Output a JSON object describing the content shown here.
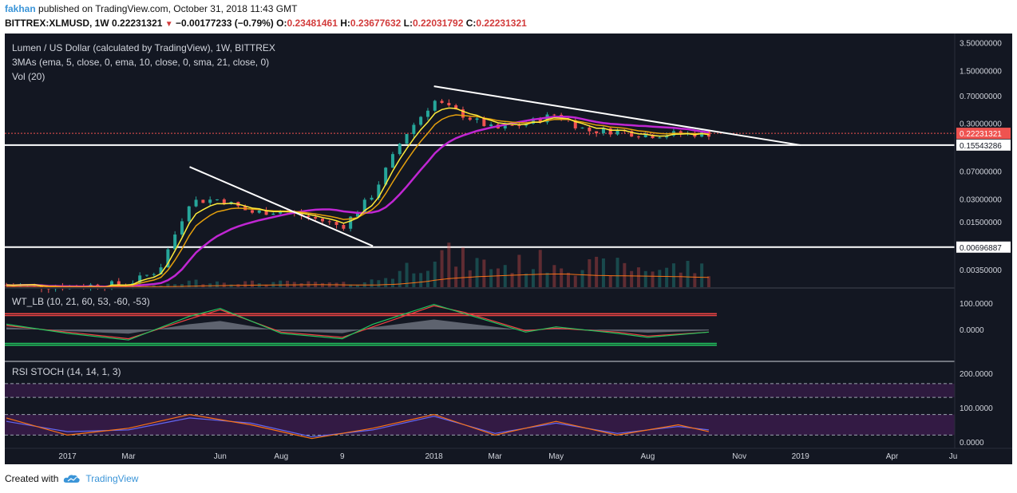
{
  "header": {
    "author": "fakhan",
    "published": "published on TradingView.com, October 31, 2018 11:43 GMT",
    "symbol": "BITTREX:XLMUSD, 1W",
    "last": "0.22231321",
    "change": "−0.00177233 (−0.79%)",
    "o_label": "O:",
    "o_value": "0.23481461",
    "h_label": "H:",
    "h_value": "0.23677632",
    "l_label": "L:",
    "l_value": "0.22031792",
    "c_label": "C:",
    "c_value": "0.22231321"
  },
  "legend": {
    "title": "Lumen / US Dollar (calculated by TradingView), 1W, BITTREX",
    "mas": "3MAs (ema, 5, close, 0, ema, 10, close, 0, sma, 21, close, 0)",
    "vol": "Vol (20)",
    "wt": "WT_LB (10, 21, 60, 53, -60, -53)",
    "rsi": "RSI STOCH (14, 14, 1, 3)"
  },
  "footer": {
    "created": "Created with",
    "brand": "TradingView"
  },
  "colors": {
    "background": "#131722",
    "up": "#26a69a",
    "down": "#ef5350",
    "ema5": "#ffeb3b",
    "sma21": "#c026d3",
    "wt1": "#22c55e",
    "wt2": "#ef4444",
    "stoch_k": "#f97316",
    "stoch_d": "#6366f1",
    "trendline": "#ffffff"
  },
  "chart_data": [
    {
      "type": "line",
      "title": "Lumen / US Dollar (calculated by TradingView), 1W, BITTREX",
      "y_scale": "log",
      "y_ticks": [
        "3.50000000",
        "1.50000000",
        "0.70000000",
        "0.30000000",
        "0.15543286",
        "0.07000000",
        "0.03000000",
        "0.01500000",
        "0.00696887",
        "0.00350000"
      ],
      "x_ticks": [
        "2017",
        "Mar",
        "Jun",
        "Aug",
        "9",
        "2018",
        "Mar",
        "May",
        "Aug",
        "Nov",
        "2019",
        "Apr",
        "Ju"
      ],
      "x": [
        "2016-11",
        "2017-01",
        "2017-03",
        "2017-04",
        "2017-05",
        "2017-06",
        "2017-07",
        "2017-08",
        "2017-09",
        "2017-10",
        "2017-11",
        "2017-12",
        "2018-01",
        "2018-02",
        "2018-03",
        "2018-04",
        "2018-05",
        "2018-06",
        "2018-07",
        "2018-08",
        "2018-09",
        "2018-10"
      ],
      "series": [
        {
          "values": [
            0.0022,
            0.0021,
            0.0023,
            0.0035,
            0.028,
            0.03,
            0.02,
            0.021,
            0.017,
            0.013,
            0.035,
            0.2,
            0.6,
            0.38,
            0.25,
            0.3,
            0.4,
            0.24,
            0.24,
            0.21,
            0.22,
            0.22
          ]
        }
      ],
      "horizontal_lines": [
        0.15543286,
        0.00696887
      ],
      "last_price": "0.22231321",
      "volume_label": "Vol (20)"
    },
    {
      "type": "line",
      "title": "WT_LB (10, 21, 60, 53, -60, -53)",
      "y_ticks": [
        "100.0000",
        "0.0000"
      ],
      "x": [
        "2016-11",
        "2017-01",
        "2017-03",
        "2017-05",
        "2017-06",
        "2017-08",
        "2017-10",
        "2017-11",
        "2018-01",
        "2018-02",
        "2018-04",
        "2018-05",
        "2018-07",
        "2018-08",
        "2018-10"
      ],
      "series": [
        {
          "values": [
            20,
            -15,
            -40,
            50,
            80,
            -15,
            -35,
            20,
            95,
            60,
            -10,
            10,
            -15,
            -30,
            -10
          ]
        },
        {
          "values": [
            15,
            -10,
            -35,
            40,
            75,
            -10,
            -30,
            10,
            90,
            65,
            -5,
            5,
            -10,
            -25,
            -10
          ]
        }
      ],
      "levels": [
        60,
        53,
        -53,
        -60
      ]
    },
    {
      "type": "line",
      "title": "RSI STOCH (14, 14, 1, 3)",
      "y_ticks": [
        "200.0000",
        "100.0000",
        "0.0000"
      ],
      "x": [
        "2016-11",
        "2017-01",
        "2017-03",
        "2017-05",
        "2017-07",
        "2017-09",
        "2017-11",
        "2018-01",
        "2018-03",
        "2018-05",
        "2018-07",
        "2018-09",
        "2018-10"
      ],
      "series": [
        {
          "values": [
            70,
            20,
            40,
            80,
            50,
            10,
            40,
            80,
            20,
            60,
            20,
            50,
            30
          ]
        },
        {
          "values": [
            60,
            30,
            35,
            70,
            55,
            15,
            35,
            75,
            25,
            55,
            25,
            45,
            35
          ]
        }
      ]
    }
  ]
}
